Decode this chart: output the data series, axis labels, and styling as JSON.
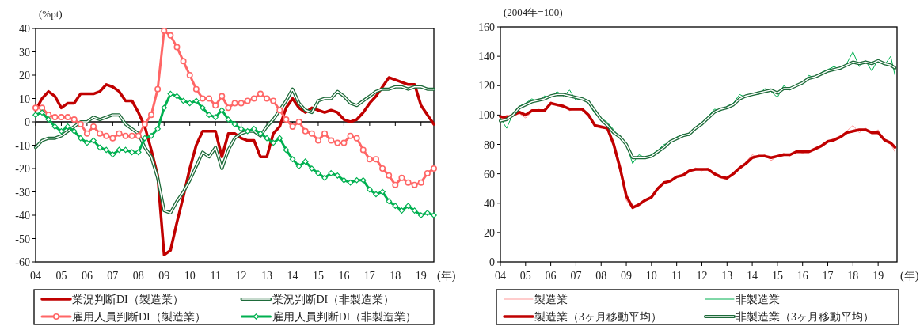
{
  "chart_data": [
    {
      "type": "line",
      "ylabel": "(%pt)",
      "xlabel": "(年)",
      "x": [
        2004,
        2004.25,
        2004.5,
        2004.75,
        2005,
        2005.25,
        2005.5,
        2005.75,
        2006,
        2006.25,
        2006.5,
        2006.75,
        2007,
        2007.25,
        2007.5,
        2007.75,
        2008,
        2008.25,
        2008.5,
        2008.75,
        2009,
        2009.25,
        2009.5,
        2009.75,
        2010,
        2010.25,
        2010.5,
        2010.75,
        2011,
        2011.25,
        2011.5,
        2011.75,
        2012,
        2012.25,
        2012.5,
        2012.75,
        2013,
        2013.25,
        2013.5,
        2013.75,
        2014,
        2014.25,
        2014.5,
        2014.75,
        2015,
        2015.25,
        2015.5,
        2015.75,
        2016,
        2016.25,
        2016.5,
        2016.75,
        2017,
        2017.25,
        2017.5,
        2017.75,
        2018,
        2018.25,
        2018.5,
        2018.75,
        2019,
        2019.25,
        2019.5
      ],
      "xlim": [
        2004,
        2019.5
      ],
      "xticks": [
        {
          "value": 2004,
          "label": "04"
        },
        {
          "value": 2005,
          "label": "05"
        },
        {
          "value": 2006,
          "label": "06"
        },
        {
          "value": 2007,
          "label": "07"
        },
        {
          "value": 2008,
          "label": "08"
        },
        {
          "value": 2009,
          "label": "09"
        },
        {
          "value": 2010,
          "label": "10"
        },
        {
          "value": 2011,
          "label": "11"
        },
        {
          "value": 2012,
          "label": "12"
        },
        {
          "value": 2013,
          "label": "13"
        },
        {
          "value": 2014,
          "label": "14"
        },
        {
          "value": 2015,
          "label": "15"
        },
        {
          "value": 2016,
          "label": "16"
        },
        {
          "value": 2017,
          "label": "17"
        },
        {
          "value": 2018,
          "label": "18"
        },
        {
          "value": 2019,
          "label": "19"
        }
      ],
      "ylim": [
        -60,
        40
      ],
      "yticks": [
        -60,
        -50,
        -40,
        -30,
        -20,
        -10,
        0,
        10,
        20,
        30,
        40
      ],
      "legend": "bottom",
      "series": [
        {
          "name": "業況判断DI（製造業）",
          "color": "#c00000",
          "marker": "none",
          "values": [
            5,
            10,
            13,
            11,
            6,
            8,
            8,
            12,
            12,
            12,
            13,
            16,
            15,
            13,
            9,
            9,
            4,
            -2,
            -12,
            -23,
            -57,
            -55,
            -43,
            -32,
            -20,
            -10,
            -4,
            -4,
            -4,
            -15,
            -5,
            -5,
            -7,
            -8,
            -8,
            -15,
            -15,
            -5,
            -2,
            6,
            10,
            6,
            4,
            6,
            5,
            4,
            5,
            4,
            1,
            0,
            1,
            4,
            8,
            11,
            15,
            19,
            18,
            17,
            16,
            16,
            7,
            3,
            -1
          ]
        },
        {
          "name": "業況判断DI（非製造業）",
          "color": "#1e6b3a",
          "marker": "none",
          "values": [
            -11,
            -8,
            -7,
            -7,
            -6,
            -4,
            -2,
            0,
            0,
            2,
            1,
            2,
            3,
            3,
            -1,
            -3,
            -5,
            -11,
            -15,
            -24,
            -38,
            -39,
            -34,
            -30,
            -25,
            -19,
            -13,
            -15,
            -11,
            -20,
            -12,
            -7,
            -5,
            -4,
            -4,
            -6,
            -2,
            1,
            5,
            9,
            14,
            8,
            5,
            4,
            9,
            10,
            10,
            13,
            11,
            8,
            7,
            9,
            11,
            13,
            14,
            14,
            15,
            15,
            14,
            15,
            15,
            14,
            14
          ]
        },
        {
          "name": "雇用人員判断DI（製造業）",
          "color": "#ff6666",
          "marker": "circle",
          "values": [
            6,
            6,
            3,
            2,
            2,
            2,
            1,
            -1,
            -5,
            -2,
            -5,
            -6,
            -7,
            -5,
            -6,
            -6,
            -6,
            -1,
            3,
            14,
            39,
            37,
            32,
            26,
            20,
            14,
            10,
            10,
            7,
            11,
            6,
            8,
            8,
            9,
            10,
            12,
            10,
            9,
            5,
            1,
            -2,
            0,
            -4,
            -5,
            -8,
            -5,
            -8,
            -9,
            -9,
            -6,
            -7,
            -12,
            -16,
            -16,
            -20,
            -23,
            -27,
            -24,
            -26,
            -27,
            -26,
            -22,
            -20
          ]
        },
        {
          "name": "雇用人員判断DI（非製造業）",
          "color": "#00b050",
          "marker": "diamond",
          "values": [
            3,
            4,
            1,
            -2,
            -4,
            -2,
            -4,
            -7,
            -9,
            -8,
            -11,
            -12,
            -14,
            -12,
            -12,
            -13,
            -13,
            -7,
            -6,
            -3,
            6,
            12,
            11,
            9,
            8,
            9,
            6,
            3,
            2,
            5,
            1,
            -1,
            -3,
            -4,
            -3,
            -5,
            -7,
            -9,
            -7,
            -12,
            -16,
            -19,
            -17,
            -20,
            -22,
            -24,
            -22,
            -23,
            -25,
            -26,
            -25,
            -25,
            -29,
            -31,
            -30,
            -34,
            -36,
            -38,
            -36,
            -38,
            -40,
            -39,
            -40
          ]
        }
      ]
    },
    {
      "type": "line",
      "ylabel": "(2004年=100)",
      "xlabel": "(年)",
      "x": [
        2004,
        2004.25,
        2004.5,
        2004.75,
        2005,
        2005.25,
        2005.5,
        2005.75,
        2006,
        2006.25,
        2006.5,
        2006.75,
        2007,
        2007.25,
        2007.5,
        2007.75,
        2008,
        2008.25,
        2008.5,
        2008.75,
        2009,
        2009.25,
        2009.5,
        2009.75,
        2010,
        2010.25,
        2010.5,
        2010.75,
        2011,
        2011.25,
        2011.5,
        2011.75,
        2012,
        2012.25,
        2012.5,
        2012.75,
        2013,
        2013.25,
        2013.5,
        2013.75,
        2014,
        2014.25,
        2014.5,
        2014.75,
        2015,
        2015.25,
        2015.5,
        2015.75,
        2016,
        2016.25,
        2016.5,
        2016.75,
        2017,
        2017.25,
        2017.5,
        2017.75,
        2018,
        2018.25,
        2018.5,
        2018.75,
        2019,
        2019.25,
        2019.5,
        2019.67
      ],
      "xlim": [
        2004,
        2019.75
      ],
      "xticks": [
        {
          "value": 2004,
          "label": "04"
        },
        {
          "value": 2005,
          "label": "05"
        },
        {
          "value": 2006,
          "label": "06"
        },
        {
          "value": 2007,
          "label": "07"
        },
        {
          "value": 2008,
          "label": "08"
        },
        {
          "value": 2009,
          "label": "09"
        },
        {
          "value": 2010,
          "label": "10"
        },
        {
          "value": 2011,
          "label": "11"
        },
        {
          "value": 2012,
          "label": "12"
        },
        {
          "value": 2013,
          "label": "13"
        },
        {
          "value": 2014,
          "label": "14"
        },
        {
          "value": 2015,
          "label": "15"
        },
        {
          "value": 2016,
          "label": "16"
        },
        {
          "value": 2017,
          "label": "17"
        },
        {
          "value": 2018,
          "label": "18"
        },
        {
          "value": 2019,
          "label": "19"
        }
      ],
      "ylim": [
        0,
        160
      ],
      "yticks": [
        0,
        20,
        40,
        60,
        80,
        100,
        120,
        140,
        160
      ],
      "legend": "bottom",
      "series": [
        {
          "name": "製造業",
          "color": "#ff9999",
          "marker": "none",
          "values": [
            97,
            100,
            99,
            101,
            98,
            102,
            104,
            103,
            109,
            106,
            107,
            103,
            105,
            103,
            101,
            92,
            91,
            92,
            78,
            62,
            42,
            36,
            40,
            41,
            45,
            51,
            53,
            56,
            57,
            60,
            61,
            64,
            62,
            64,
            59,
            57,
            56,
            61,
            63,
            68,
            73,
            71,
            73,
            69,
            72,
            74,
            72,
            76,
            74,
            76,
            76,
            80,
            82,
            84,
            86,
            89,
            93,
            88,
            91,
            87,
            90,
            82,
            80,
            75
          ]
        },
        {
          "name": "非製造業",
          "color": "#00b050",
          "marker": "none",
          "values": [
            98,
            91,
            101,
            106,
            108,
            111,
            109,
            113,
            112,
            116,
            113,
            117,
            110,
            112,
            108,
            101,
            98,
            95,
            90,
            84,
            80,
            67,
            73,
            71,
            73,
            76,
            80,
            81,
            85,
            87,
            86,
            92,
            95,
            99,
            104,
            103,
            106,
            108,
            114,
            112,
            115,
            114,
            118,
            116,
            112,
            120,
            117,
            121,
            121,
            127,
            125,
            129,
            131,
            133,
            131,
            135,
            143,
            133,
            137,
            130,
            138,
            134,
            140,
            127
          ]
        },
        {
          "name": "製造業（3ヶ月移動平均）",
          "color": "#c00000",
          "marker": "none",
          "values": [
            99,
            98,
            100,
            102,
            100,
            103,
            103,
            103,
            108,
            107,
            106,
            104,
            104,
            104,
            100,
            93,
            92,
            91,
            80,
            64,
            45,
            37,
            39,
            42,
            44,
            50,
            54,
            55,
            58,
            59,
            62,
            63,
            63,
            63,
            60,
            58,
            57,
            60,
            64,
            67,
            71,
            72,
            72,
            71,
            72,
            73,
            73,
            75,
            75,
            75,
            77,
            79,
            82,
            83,
            85,
            88,
            89,
            90,
            90,
            88,
            88,
            83,
            81,
            78
          ]
        },
        {
          "name": "非製造業（3ヶ月移動平均）",
          "color": "#1e6b3a",
          "marker": "none",
          "values": [
            96,
            97,
            100,
            105,
            107,
            109,
            110,
            111,
            113,
            114,
            114,
            113,
            112,
            111,
            109,
            103,
            97,
            93,
            88,
            85,
            80,
            71,
            71,
            71,
            72,
            75,
            78,
            82,
            84,
            86,
            87,
            91,
            94,
            98,
            102,
            104,
            105,
            107,
            111,
            113,
            114,
            115,
            116,
            117,
            115,
            118,
            118,
            120,
            122,
            125,
            126,
            128,
            130,
            131,
            132,
            134,
            136,
            135,
            136,
            135,
            137,
            135,
            134,
            132
          ]
        }
      ]
    }
  ]
}
